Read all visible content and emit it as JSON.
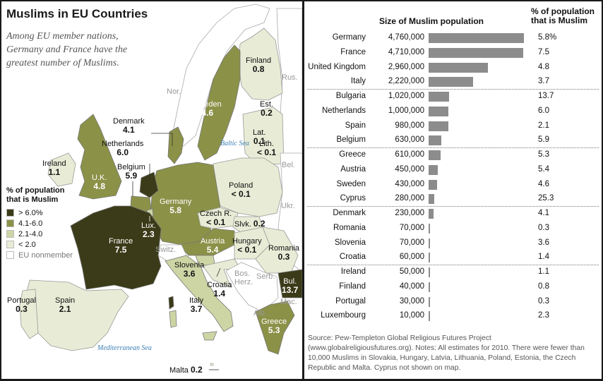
{
  "map": {
    "title": "Muslims in EU Countries",
    "subtitle": "Among EU member nations, Germany and France have the greatest number of Muslims.",
    "legend": {
      "title": "% of population that is Muslim",
      "items": [
        {
          "label": "> 6.0%",
          "color": "#3b3b19"
        },
        {
          "label": "4.1-6.0",
          "color": "#8b9147"
        },
        {
          "label": "2.1-4.0",
          "color": "#ced5a5"
        },
        {
          "label": "< 2.0",
          "color": "#e8ecd6"
        },
        {
          "label": "EU nonmember",
          "color": "#ffffff"
        }
      ]
    },
    "labels": {
      "finland": {
        "name": "Finland",
        "value": "0.8"
      },
      "sweden": {
        "name": "Sweden",
        "value": "4.6"
      },
      "estonia": {
        "name": "Est.",
        "value": "0.2"
      },
      "latvia": {
        "name": "Lat.",
        "value": "0.1"
      },
      "lithuania": {
        "name": "Lith.",
        "value": "< 0.1"
      },
      "denmark": {
        "name": "Denmark",
        "value": "4.1"
      },
      "netherlands": {
        "name": "Netherlands",
        "value": "6.0"
      },
      "belgium": {
        "name": "Belgium",
        "value": "5.9"
      },
      "ireland": {
        "name": "Ireland",
        "value": "1.1"
      },
      "uk": {
        "name": "U.K.",
        "value": "4.8"
      },
      "germany": {
        "name": "Germany",
        "value": "5.8"
      },
      "poland": {
        "name": "Poland",
        "value": "< 0.1"
      },
      "czech": {
        "name": "Czech R.",
        "value": "< 0.1"
      },
      "slovakia": {
        "name": "Slvk.",
        "value": "0.2"
      },
      "luxembourg": {
        "name": "Lux.",
        "value": "2.3"
      },
      "france": {
        "name": "France",
        "value": "7.5"
      },
      "austria": {
        "name": "Austria",
        "value": "5.4"
      },
      "hungary": {
        "name": "Hungary",
        "value": "< 0.1"
      },
      "romania": {
        "name": "Romania",
        "value": "0.3"
      },
      "slovenia": {
        "name": "Slovenia",
        "value": "3.6"
      },
      "croatia": {
        "name": "Croatia",
        "value": "1.4"
      },
      "bulgaria": {
        "name": "Bul.",
        "value": "13.7"
      },
      "portugal": {
        "name": "Portugal",
        "value": "0.3"
      },
      "spain": {
        "name": "Spain",
        "value": "2.1"
      },
      "italy": {
        "name": "Italy",
        "value": "3.7"
      },
      "greece": {
        "name": "Greece",
        "value": "5.3"
      },
      "malta": {
        "name": "Malta",
        "value": "0.2"
      }
    },
    "nonmembers": {
      "nor": "Nor.",
      "rus": "Rus.",
      "bel": "Bel.",
      "ukr": "Ukr.",
      "switz": "Switz.",
      "bos": "Bos.",
      "herz": "Herz.",
      "serb": "Serb.",
      "mac": "Mac.",
      "alb": "Alb."
    },
    "seas": {
      "baltic": "Baltic Sea",
      "mediterranean": "Mediterranean Sea"
    }
  },
  "table": {
    "header_size": "Size of Muslim population",
    "header_pct": "% of population that is Muslim",
    "source": "Source: Pew-Templeton Global Religious Futures Project (www.globalreligiousfutures.org). Notes: All estimates for 2010. There were fewer than 10,000 Muslims in Slovakia, Hungary, Latvia, Lithuania, Poland, Estonia, the Czech Republic and Malta. Cyprus not shown on map."
  },
  "chart_data": {
    "type": "bar",
    "title": "Size of Muslim population",
    "categories": [
      "Germany",
      "France",
      "United Kingdom",
      "Italy",
      "Bulgaria",
      "Netherlands",
      "Spain",
      "Belgium",
      "Greece",
      "Austria",
      "Sweden",
      "Cyprus",
      "Denmark",
      "Romania",
      "Slovenia",
      "Croatia",
      "Ireland",
      "Finland",
      "Portugal",
      "Luxembourg"
    ],
    "values": [
      4760000,
      4710000,
      2960000,
      2220000,
      1020000,
      1000000,
      980000,
      630000,
      610000,
      450000,
      430000,
      280000,
      230000,
      70000,
      70000,
      60000,
      50000,
      40000,
      30000,
      10000
    ],
    "value_labels": [
      "4,760,000",
      "4,710,000",
      "2,960,000",
      "2,220,000",
      "1,020,000",
      "1,000,000",
      "980,000",
      "630,000",
      "610,000",
      "450,000",
      "430,000",
      "280,000",
      "230,000",
      "70,000",
      "70,000",
      "60,000",
      "50,000",
      "40,000",
      "30,000",
      "10,000"
    ],
    "percent_labels": [
      "5.8%",
      "7.5",
      "4.8",
      "3.7",
      "13.7",
      "6.0",
      "2.1",
      "5.9",
      "5.3",
      "5.4",
      "4.6",
      "25.3",
      "4.1",
      "0.3",
      "3.6",
      "1.4",
      "1.1",
      "0.8",
      "0.3",
      "2.3"
    ],
    "bar_color": "#8c8c8c",
    "group_size": 4,
    "xlim": [
      0,
      4760000
    ]
  }
}
